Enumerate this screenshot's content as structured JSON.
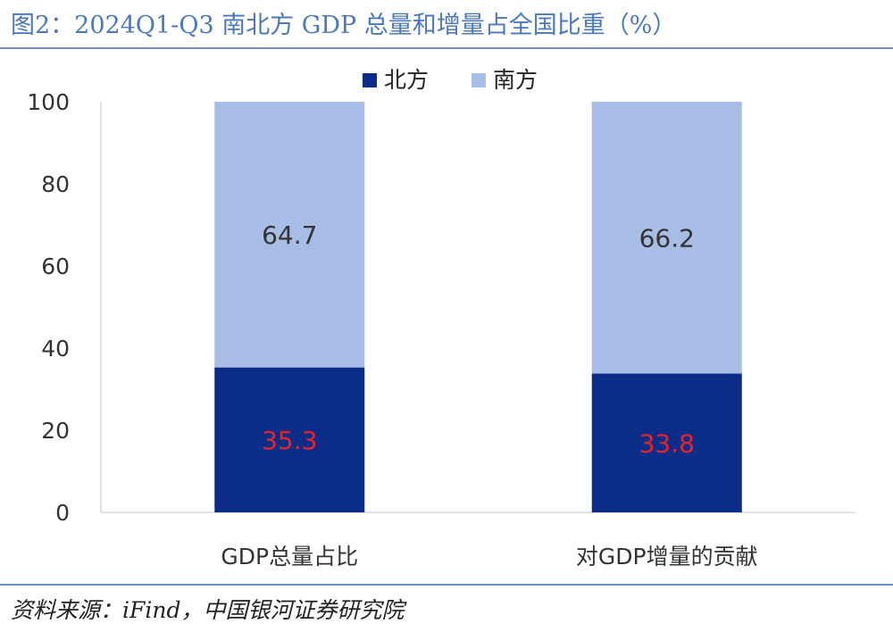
{
  "title": "图2：2024Q1-Q3 南北方 GDP 总量和增量占全国比重（%）",
  "source": "资料来源：iFind，中国银河证券研究院",
  "chart_data": {
    "type": "bar",
    "stacked": true,
    "categories": [
      "GDP总量占比",
      "对GDP增量的贡献"
    ],
    "series": [
      {
        "name": "北方",
        "values": [
          35.3,
          33.8
        ],
        "color": "#0b2d87",
        "label_color": "#e8232a"
      },
      {
        "name": "南方",
        "values": [
          64.7,
          66.2
        ],
        "color": "#a8bde6",
        "label_color": "#333333"
      }
    ],
    "ylim": [
      0,
      100
    ],
    "yticks": [
      "0",
      "20",
      "40",
      "60",
      "80",
      "100"
    ],
    "legend": "top-center",
    "grid": false
  }
}
